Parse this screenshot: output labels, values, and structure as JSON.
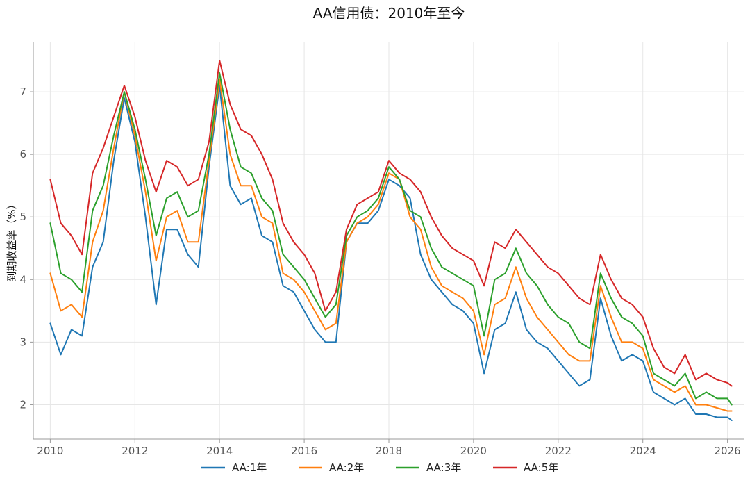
{
  "chart_data": {
    "type": "line",
    "title": "AA信用债：2010年至今",
    "xlabel": "",
    "ylabel": "到期收益率（%）",
    "xlim": [
      2009.6,
      2026.4
    ],
    "ylim": [
      1.45,
      7.8
    ],
    "x_ticks": [
      2010,
      2012,
      2014,
      2016,
      2018,
      2020,
      2022,
      2024,
      2026
    ],
    "y_ticks": [
      2,
      3,
      4,
      5,
      6,
      7
    ],
    "grid": true,
    "legend_position": "bottom-center",
    "x": [
      2010.0,
      2010.25,
      2010.5,
      2010.75,
      2011.0,
      2011.25,
      2011.5,
      2011.75,
      2012.0,
      2012.25,
      2012.5,
      2012.75,
      2013.0,
      2013.25,
      2013.5,
      2013.75,
      2014.0,
      2014.25,
      2014.5,
      2014.75,
      2015.0,
      2015.25,
      2015.5,
      2015.75,
      2016.0,
      2016.25,
      2016.5,
      2016.75,
      2017.0,
      2017.25,
      2017.5,
      2017.75,
      2018.0,
      2018.25,
      2018.5,
      2018.75,
      2019.0,
      2019.25,
      2019.5,
      2019.75,
      2020.0,
      2020.25,
      2020.5,
      2020.75,
      2021.0,
      2021.25,
      2021.5,
      2021.75,
      2022.0,
      2022.25,
      2022.5,
      2022.75,
      2023.0,
      2023.25,
      2023.5,
      2023.75,
      2024.0,
      2024.25,
      2024.5,
      2024.75,
      2025.0,
      2025.25,
      2025.5,
      2025.75,
      2026.0,
      2026.1
    ],
    "series": [
      {
        "name": "AA:1年",
        "color": "#1f77b4",
        "values": [
          3.3,
          2.8,
          3.2,
          3.1,
          4.2,
          4.6,
          5.9,
          6.9,
          6.2,
          5.0,
          3.6,
          4.8,
          4.8,
          4.4,
          4.2,
          5.8,
          7.1,
          5.5,
          5.2,
          5.3,
          4.7,
          4.6,
          3.9,
          3.8,
          3.5,
          3.2,
          3.0,
          3.0,
          4.6,
          4.9,
          4.9,
          5.1,
          5.6,
          5.5,
          5.3,
          4.4,
          4.0,
          3.8,
          3.6,
          3.5,
          3.3,
          2.5,
          3.2,
          3.3,
          3.8,
          3.2,
          3.0,
          2.9,
          2.7,
          2.5,
          2.3,
          2.4,
          3.7,
          3.1,
          2.7,
          2.8,
          2.7,
          2.2,
          2.1,
          2.0,
          2.1,
          1.85,
          1.85,
          1.8,
          1.8,
          1.75
        ]
      },
      {
        "name": "AA:2年",
        "color": "#ff7f0e",
        "values": [
          4.1,
          3.5,
          3.6,
          3.4,
          4.6,
          5.1,
          6.1,
          7.0,
          6.3,
          5.4,
          4.3,
          5.0,
          5.1,
          4.6,
          4.6,
          5.9,
          7.2,
          6.0,
          5.5,
          5.5,
          5.0,
          4.9,
          4.1,
          4.0,
          3.8,
          3.5,
          3.2,
          3.3,
          4.6,
          4.9,
          5.0,
          5.2,
          5.7,
          5.6,
          5.0,
          4.8,
          4.2,
          3.9,
          3.8,
          3.7,
          3.5,
          2.8,
          3.6,
          3.7,
          4.2,
          3.7,
          3.4,
          3.2,
          3.0,
          2.8,
          2.7,
          2.7,
          3.9,
          3.4,
          3.0,
          3.0,
          2.9,
          2.4,
          2.3,
          2.2,
          2.3,
          2.0,
          2.0,
          1.95,
          1.9,
          1.9
        ]
      },
      {
        "name": "AA:3年",
        "color": "#2ca02c",
        "values": [
          4.9,
          4.1,
          4.0,
          3.8,
          5.1,
          5.5,
          6.3,
          7.0,
          6.4,
          5.6,
          4.7,
          5.3,
          5.4,
          5.0,
          5.1,
          6.0,
          7.3,
          6.4,
          5.8,
          5.7,
          5.3,
          5.1,
          4.4,
          4.2,
          4.0,
          3.7,
          3.4,
          3.6,
          4.7,
          5.0,
          5.1,
          5.3,
          5.8,
          5.6,
          5.1,
          5.0,
          4.5,
          4.2,
          4.1,
          4.0,
          3.9,
          3.1,
          4.0,
          4.1,
          4.5,
          4.1,
          3.9,
          3.6,
          3.4,
          3.3,
          3.0,
          2.9,
          4.1,
          3.7,
          3.4,
          3.3,
          3.1,
          2.5,
          2.4,
          2.3,
          2.5,
          2.1,
          2.2,
          2.1,
          2.1,
          2.0
        ]
      },
      {
        "name": "AA:5年",
        "color": "#d62728",
        "values": [
          5.6,
          4.9,
          4.7,
          4.4,
          5.7,
          6.1,
          6.6,
          7.1,
          6.6,
          5.9,
          5.4,
          5.9,
          5.8,
          5.5,
          5.6,
          6.2,
          7.5,
          6.8,
          6.4,
          6.3,
          6.0,
          5.6,
          4.9,
          4.6,
          4.4,
          4.1,
          3.5,
          3.8,
          4.8,
          5.2,
          5.3,
          5.4,
          5.9,
          5.7,
          5.6,
          5.4,
          5.0,
          4.7,
          4.5,
          4.4,
          4.3,
          3.9,
          4.6,
          4.5,
          4.8,
          4.6,
          4.4,
          4.2,
          4.1,
          3.9,
          3.7,
          3.6,
          4.4,
          4.0,
          3.7,
          3.6,
          3.4,
          2.9,
          2.6,
          2.5,
          2.8,
          2.4,
          2.5,
          2.4,
          2.35,
          2.3
        ]
      }
    ]
  }
}
